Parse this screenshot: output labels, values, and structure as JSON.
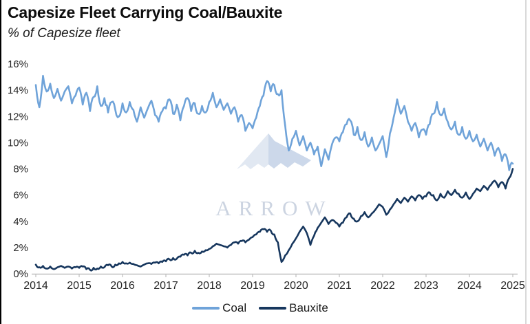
{
  "header": {
    "title": "Capesize Fleet Carrying Coal/Bauxite",
    "subtitle": "% of Capesize fleet"
  },
  "watermark": {
    "text": "ARROW"
  },
  "legend": {
    "coal": {
      "label": "Coal",
      "color": "#6fa3d9"
    },
    "bauxite": {
      "label": "Bauxite",
      "color": "#17375e"
    }
  },
  "chart_data": {
    "type": "line",
    "title": "Capesize Fleet Carrying Coal/Bauxite",
    "ylabel": "% of Capesize fleet",
    "xlim": [
      2014,
      2025
    ],
    "ylim": [
      0,
      16
    ],
    "grid": false,
    "legend_position": "bottom-center",
    "x_ticks": [
      "2014",
      "2015",
      "2016",
      "2017",
      "2018",
      "2019",
      "2020",
      "2021",
      "2022",
      "2023",
      "2024",
      "2025"
    ],
    "y_ticks": [
      "16%",
      "14%",
      "12%",
      "10%",
      "8%",
      "6%",
      "4%",
      "2%",
      "0%"
    ],
    "x_start_year": 2014,
    "x_step_months": 1,
    "axis_color": "#bfbfbf",
    "tick_label_color": "#262626",
    "series": [
      {
        "name": "Coal",
        "color": "#6fa3d9",
        "values": [
          14.4,
          12.7,
          15.1,
          13.9,
          14.5,
          13.4,
          14.1,
          13.2,
          13.9,
          14.3,
          13.0,
          13.6,
          14.2,
          12.9,
          13.8,
          12.4,
          13.5,
          14.3,
          12.8,
          13.4,
          12.3,
          13.1,
          12.5,
          12.0,
          13.0,
          12.3,
          13.1,
          12.5,
          11.6,
          12.7,
          11.9,
          12.6,
          13.2,
          12.1,
          11.6,
          12.4,
          12.6,
          13.3,
          12.2,
          12.9,
          11.7,
          12.8,
          13.4,
          12.4,
          13.0,
          12.2,
          12.8,
          12.3,
          13.1,
          13.8,
          12.7,
          13.3,
          12.5,
          13.0,
          12.2,
          12.7,
          11.6,
          12.1,
          10.9,
          11.5,
          11.1,
          11.9,
          12.8,
          13.6,
          14.7,
          13.9,
          14.4,
          13.7,
          14.0,
          11.3,
          9.4,
          10.3,
          10.9,
          9.8,
          10.5,
          9.4,
          10.0,
          9.1,
          9.7,
          8.2,
          9.5,
          8.7,
          9.9,
          10.4,
          10.1,
          10.8,
          11.4,
          11.7,
          10.6,
          11.2,
          10.2,
          10.8,
          9.7,
          10.4,
          9.4,
          9.9,
          10.5,
          8.9,
          10.7,
          11.9,
          13.3,
          12.2,
          12.8,
          11.6,
          10.9,
          11.5,
          10.4,
          11.0,
          10.6,
          11.4,
          12.2,
          13.1,
          12.1,
          12.6,
          11.6,
          11.0,
          11.6,
          10.6,
          11.2,
          10.3,
          10.9,
          10.1,
          10.6,
          9.7,
          10.3,
          9.4,
          10.0,
          9.0,
          9.6,
          8.6,
          9.1,
          7.9,
          8.4
        ]
      },
      {
        "name": "Bauxite",
        "color": "#17375e",
        "values": [
          0.7,
          0.5,
          0.6,
          0.4,
          0.55,
          0.35,
          0.5,
          0.6,
          0.45,
          0.55,
          0.4,
          0.5,
          0.45,
          0.55,
          0.35,
          0.3,
          0.45,
          0.4,
          0.55,
          0.5,
          0.65,
          0.55,
          0.7,
          0.8,
          0.9,
          0.8,
          0.85,
          0.75,
          0.65,
          0.55,
          0.7,
          0.8,
          0.75,
          0.85,
          0.8,
          0.9,
          0.95,
          1.1,
          1.2,
          1.15,
          1.3,
          1.45,
          1.4,
          1.6,
          1.75,
          1.6,
          1.7,
          1.8,
          1.9,
          2.1,
          2.3,
          2.2,
          2.1,
          2.0,
          2.2,
          2.4,
          2.3,
          2.5,
          2.4,
          2.6,
          2.8,
          3.0,
          3.2,
          3.4,
          3.2,
          3.3,
          3.0,
          2.4,
          0.9,
          1.4,
          1.8,
          2.3,
          2.7,
          3.2,
          3.6,
          3.1,
          2.2,
          2.9,
          3.5,
          3.9,
          4.3,
          3.8,
          4.1,
          3.9,
          3.6,
          3.9,
          4.3,
          4.6,
          4.2,
          4.0,
          4.4,
          4.7,
          4.3,
          4.6,
          4.9,
          5.3,
          5.1,
          4.5,
          4.9,
          5.3,
          5.7,
          5.4,
          5.8,
          5.5,
          5.9,
          5.6,
          6.0,
          5.7,
          5.9,
          6.2,
          6.0,
          5.6,
          6.1,
          5.8,
          6.3,
          6.0,
          6.4,
          6.1,
          5.8,
          6.2,
          5.7,
          6.1,
          6.5,
          6.3,
          6.7,
          6.4,
          6.8,
          7.1,
          6.6,
          7.0,
          6.5,
          7.3,
          8.0
        ]
      }
    ]
  }
}
